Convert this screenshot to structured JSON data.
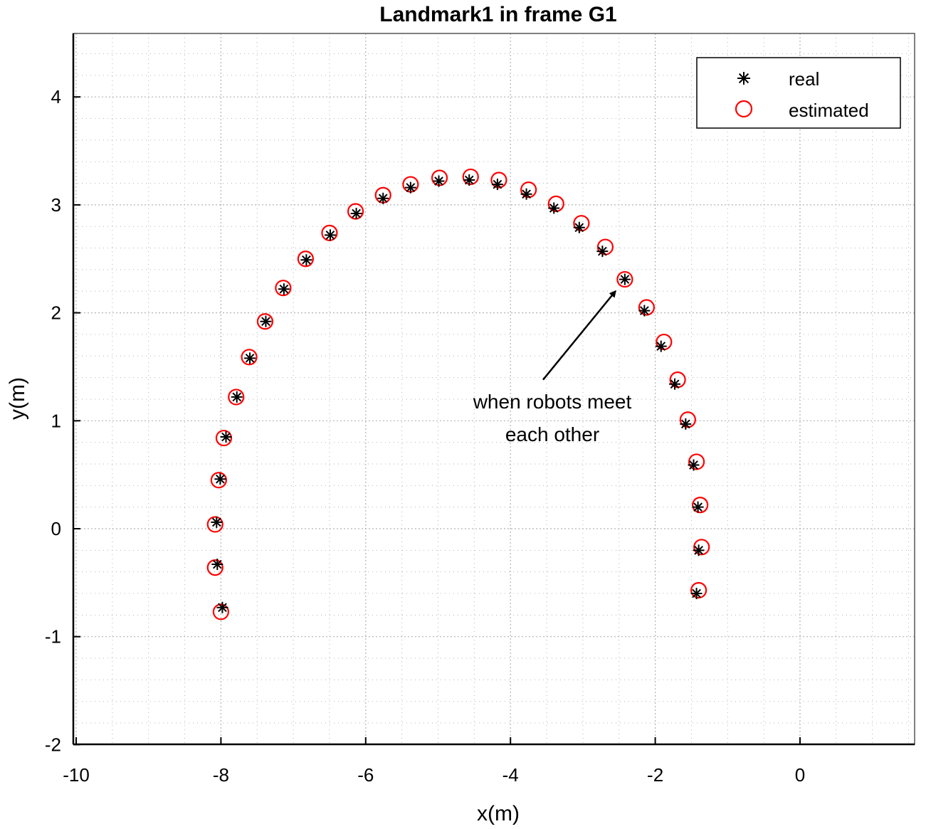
{
  "chart_data": {
    "type": "scatter",
    "title": "Landmark1 in frame G1",
    "xlabel": "x(m)",
    "ylabel": "y(m)",
    "xlim": [
      -10,
      1.5
    ],
    "ylim": [
      -2,
      4.6
    ],
    "xticks": [
      -10,
      -8,
      -6,
      -4,
      -2,
      0
    ],
    "yticks": [
      -2,
      -1,
      0,
      1,
      2,
      3,
      4
    ],
    "xtick_labels": [
      "-10",
      "-8",
      "-6",
      "-4",
      "-2",
      "0"
    ],
    "ytick_labels": [
      "-2",
      "-1",
      "0",
      "1",
      "2",
      "3",
      "4"
    ],
    "grid": "major and minor (dotted)",
    "legend_position": "top-right",
    "series": [
      {
        "name": "real",
        "marker": "asterisk",
        "color": "#000000",
        "x": [
          -7.98,
          -8.05,
          -8.06,
          -8.01,
          -7.93,
          -7.78,
          -7.6,
          -7.38,
          -7.13,
          -6.82,
          -6.49,
          -6.13,
          -5.76,
          -5.38,
          -4.99,
          -4.57,
          -4.18,
          -3.78,
          -3.4,
          -3.05,
          -2.73,
          -2.42,
          -2.15,
          -1.92,
          -1.73,
          -1.58,
          -1.47,
          -1.41,
          -1.4,
          -1.43
        ],
        "y": [
          -0.73,
          -0.33,
          0.06,
          0.46,
          0.85,
          1.22,
          1.58,
          1.92,
          2.22,
          2.49,
          2.72,
          2.92,
          3.06,
          3.16,
          3.22,
          3.23,
          3.19,
          3.1,
          2.97,
          2.79,
          2.57,
          2.31,
          2.02,
          1.69,
          1.34,
          0.97,
          0.59,
          0.2,
          -0.2,
          -0.6
        ]
      },
      {
        "name": "estimated",
        "marker": "circle",
        "color": "#ff0000",
        "x": [
          -8.0,
          -8.08,
          -8.08,
          -8.03,
          -7.96,
          -7.79,
          -7.61,
          -7.39,
          -7.14,
          -6.83,
          -6.5,
          -6.14,
          -5.76,
          -5.38,
          -4.98,
          -4.55,
          -4.16,
          -3.75,
          -3.37,
          -3.02,
          -2.69,
          -2.42,
          -2.12,
          -1.88,
          -1.69,
          -1.55,
          -1.43,
          -1.38,
          -1.36,
          -1.4
        ],
        "y": [
          -0.77,
          -0.36,
          0.04,
          0.45,
          0.84,
          1.22,
          1.59,
          1.92,
          2.23,
          2.5,
          2.74,
          2.94,
          3.09,
          3.19,
          3.25,
          3.26,
          3.23,
          3.14,
          3.01,
          2.83,
          2.61,
          2.31,
          2.05,
          1.73,
          1.38,
          1.01,
          0.62,
          0.22,
          -0.17,
          -0.57
        ]
      }
    ],
    "annotations": [
      {
        "text_lines": [
          "when robots meet",
          "each other"
        ],
        "arrow_to": [
          -2.55,
          2.2
        ],
        "arrow_from": [
          -3.55,
          1.38
        ]
      }
    ]
  },
  "colors": {
    "real_marker": "#000000",
    "estimated_marker": "#ff0000",
    "grid": "#b4b4b4",
    "axes": "#000000"
  }
}
